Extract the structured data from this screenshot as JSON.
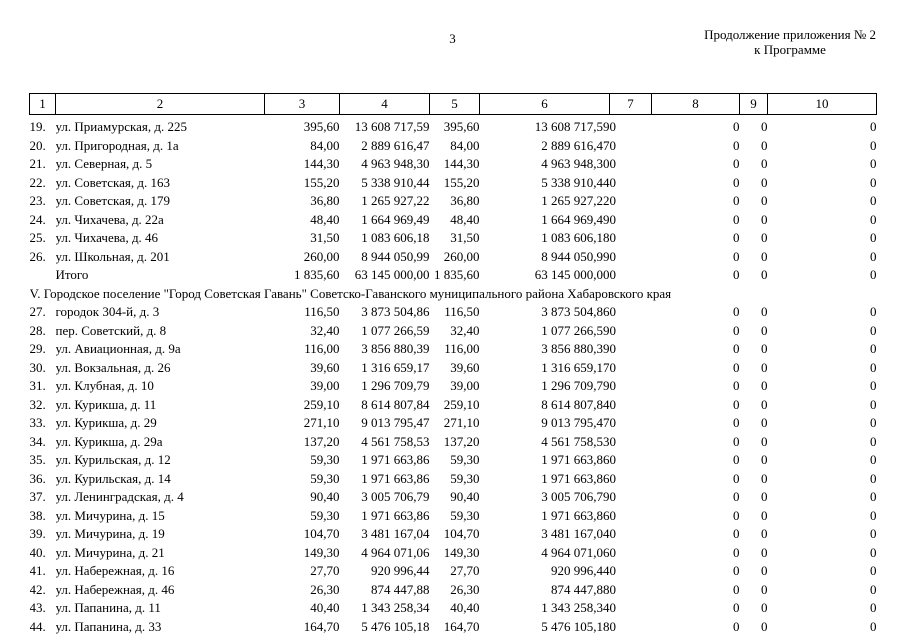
{
  "page": {
    "number": "3",
    "continuation_line1": "Продолжение приложения № 2",
    "continuation_line2": "к Программе"
  },
  "table": {
    "column_headers": [
      "1",
      "2",
      "3",
      "4",
      "5",
      "6",
      "7",
      "8",
      "9",
      "10"
    ],
    "rows": [
      {
        "type": "data",
        "cells": [
          "19.",
          "ул. Приамурская, д. 225",
          "395,60",
          "13 608 717,59",
          "395,60",
          "13 608 717,59",
          "0",
          "0",
          "0",
          "0"
        ]
      },
      {
        "type": "data",
        "cells": [
          "20.",
          "ул. Пригородная, д. 1а",
          "84,00",
          "2 889 616,47",
          "84,00",
          "2 889 616,47",
          "0",
          "0",
          "0",
          "0"
        ]
      },
      {
        "type": "data",
        "cells": [
          "21.",
          "ул. Северная, д. 5",
          "144,30",
          "4 963 948,30",
          "144,30",
          "4 963 948,30",
          "0",
          "0",
          "0",
          "0"
        ]
      },
      {
        "type": "data",
        "cells": [
          "22.",
          "ул. Советская, д. 163",
          "155,20",
          "5 338 910,44",
          "155,20",
          "5 338 910,44",
          "0",
          "0",
          "0",
          "0"
        ]
      },
      {
        "type": "data",
        "cells": [
          "23.",
          "ул. Советская, д. 179",
          "36,80",
          "1 265 927,22",
          "36,80",
          "1 265 927,22",
          "0",
          "0",
          "0",
          "0"
        ]
      },
      {
        "type": "data",
        "cells": [
          "24.",
          "ул. Чихачева, д. 22а",
          "48,40",
          "1 664 969,49",
          "48,40",
          "1 664 969,49",
          "0",
          "0",
          "0",
          "0"
        ]
      },
      {
        "type": "data",
        "cells": [
          "25.",
          "ул. Чихачева, д. 46",
          "31,50",
          "1 083 606,18",
          "31,50",
          "1 083 606,18",
          "0",
          "0",
          "0",
          "0"
        ]
      },
      {
        "type": "data",
        "cells": [
          "26.",
          "ул. Школьная, д. 201",
          "260,00",
          "8 944 050,99",
          "260,00",
          "8 944 050,99",
          "0",
          "0",
          "0",
          "0"
        ]
      },
      {
        "type": "total",
        "cells": [
          "",
          "Итого",
          "1 835,60",
          "63 145 000,00",
          "1 835,60",
          "63 145 000,00",
          "0",
          "0",
          "0",
          "0"
        ]
      },
      {
        "type": "section",
        "label": "V. Городское поселение \"Город Советская Гавань\" Советско-Гаванского муниципального района Хабаровского края"
      },
      {
        "type": "data",
        "cells": [
          "27.",
          "городок 304-й, д. 3",
          "116,50",
          "3 873 504,86",
          "116,50",
          "3 873 504,86",
          "0",
          "0",
          "0",
          "0"
        ]
      },
      {
        "type": "data",
        "cells": [
          "28.",
          "пер. Советский, д. 8",
          "32,40",
          "1 077 266,59",
          "32,40",
          "1 077 266,59",
          "0",
          "0",
          "0",
          "0"
        ]
      },
      {
        "type": "data",
        "cells": [
          "29.",
          "ул. Авиационная, д. 9а",
          "116,00",
          "3 856 880,39",
          "116,00",
          "3 856 880,39",
          "0",
          "0",
          "0",
          "0"
        ]
      },
      {
        "type": "data",
        "cells": [
          "30.",
          "ул. Вокзальная, д. 26",
          "39,60",
          "1 316 659,17",
          "39,60",
          "1 316 659,17",
          "0",
          "0",
          "0",
          "0"
        ]
      },
      {
        "type": "data",
        "cells": [
          "31.",
          "ул. Клубная, д. 10",
          "39,00",
          "1 296 709,79",
          "39,00",
          "1 296 709,79",
          "0",
          "0",
          "0",
          "0"
        ]
      },
      {
        "type": "data",
        "cells": [
          "32.",
          "ул. Курикша, д. 11",
          "259,10",
          "8 614 807,84",
          "259,10",
          "8 614 807,84",
          "0",
          "0",
          "0",
          "0"
        ]
      },
      {
        "type": "data",
        "cells": [
          "33.",
          "ул. Курикша, д. 29",
          "271,10",
          "9 013 795,47",
          "271,10",
          "9 013 795,47",
          "0",
          "0",
          "0",
          "0"
        ]
      },
      {
        "type": "data",
        "cells": [
          "34.",
          "ул. Курикша, д. 29а",
          "137,20",
          "4 561 758,53",
          "137,20",
          "4 561 758,53",
          "0",
          "0",
          "0",
          "0"
        ]
      },
      {
        "type": "data",
        "cells": [
          "35.",
          "ул. Курильская, д. 12",
          "59,30",
          "1 971 663,86",
          "59,30",
          "1 971 663,86",
          "0",
          "0",
          "0",
          "0"
        ]
      },
      {
        "type": "data",
        "cells": [
          "36.",
          "ул. Курильская, д. 14",
          "59,30",
          "1 971 663,86",
          "59,30",
          "1 971 663,86",
          "0",
          "0",
          "0",
          "0"
        ]
      },
      {
        "type": "data",
        "cells": [
          "37.",
          "ул. Ленинградская, д. 4",
          "90,40",
          "3 005 706,79",
          "90,40",
          "3 005 706,79",
          "0",
          "0",
          "0",
          "0"
        ]
      },
      {
        "type": "data",
        "cells": [
          "38.",
          "ул. Мичурина, д. 15",
          "59,30",
          "1 971 663,86",
          "59,30",
          "1 971 663,86",
          "0",
          "0",
          "0",
          "0"
        ]
      },
      {
        "type": "data",
        "cells": [
          "39.",
          "ул. Мичурина, д. 19",
          "104,70",
          "3 481 167,04",
          "104,70",
          "3 481 167,04",
          "0",
          "0",
          "0",
          "0"
        ]
      },
      {
        "type": "data",
        "cells": [
          "40.",
          "ул. Мичурина, д. 21",
          "149,30",
          "4 964 071,06",
          "149,30",
          "4 964 071,06",
          "0",
          "0",
          "0",
          "0"
        ]
      },
      {
        "type": "data",
        "cells": [
          "41.",
          "ул. Набережная, д. 16",
          "27,70",
          "920 996,44",
          "27,70",
          "920 996,44",
          "0",
          "0",
          "0",
          "0"
        ]
      },
      {
        "type": "data",
        "cells": [
          "42.",
          "ул. Набережная, д. 46",
          "26,30",
          "874 447,88",
          "26,30",
          "874 447,88",
          "0",
          "0",
          "0",
          "0"
        ]
      },
      {
        "type": "data",
        "cells": [
          "43.",
          "ул. Папанина, д. 11",
          "40,40",
          "1 343 258,34",
          "40,40",
          "1 343 258,34",
          "0",
          "0",
          "0",
          "0"
        ]
      },
      {
        "type": "data",
        "cells": [
          "44.",
          "ул. Папанина, д. 33",
          "164,70",
          "5 476 105,18",
          "164,70",
          "5 476 105,18",
          "0",
          "0",
          "0",
          "0"
        ]
      }
    ]
  }
}
